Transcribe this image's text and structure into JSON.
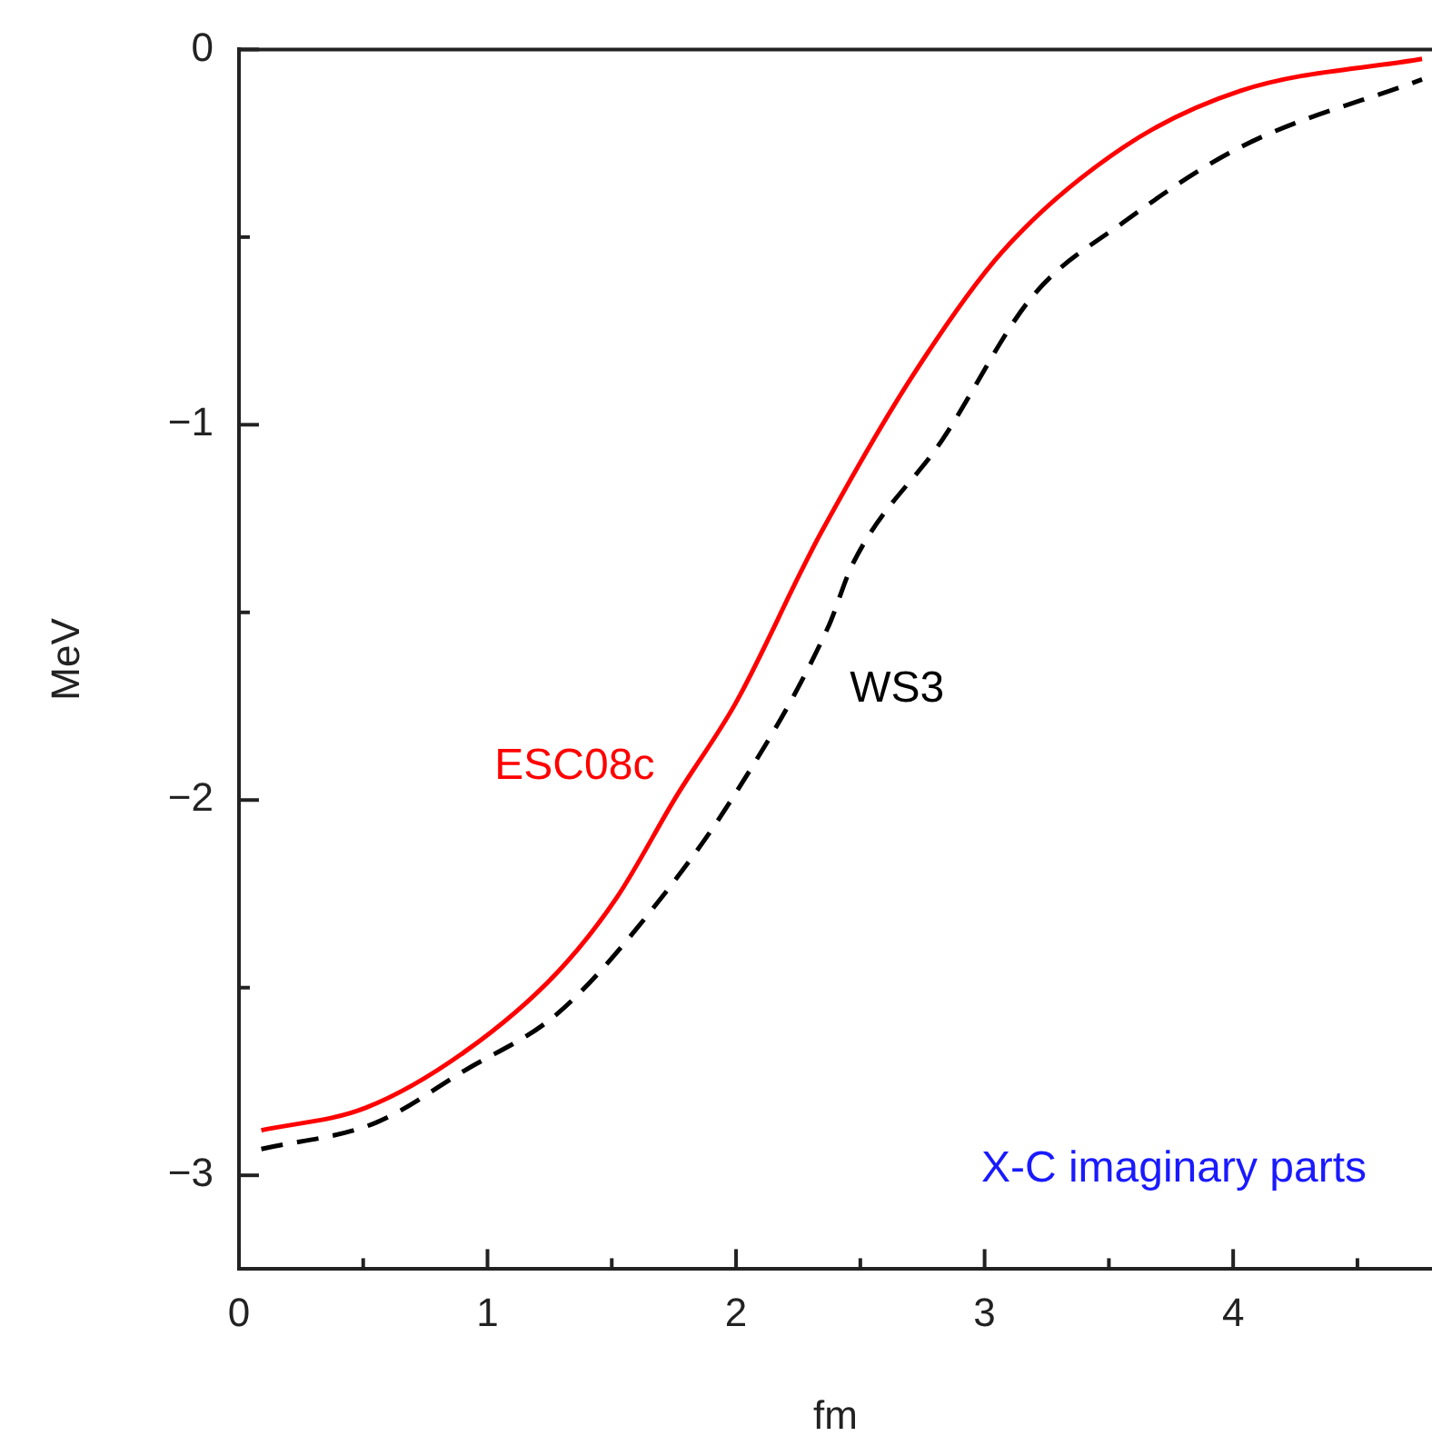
{
  "chart_data": {
    "type": "line",
    "xlabel": "fm",
    "ylabel": "MeV",
    "xlim": [
      0,
      4.8
    ],
    "ylim": [
      -3.25,
      0
    ],
    "xticks": [
      0,
      {
        "value": 0.5,
        "label": null
      },
      1,
      {
        "value": 1.5,
        "label": null
      },
      2,
      {
        "value": 2.5,
        "label": null
      },
      3,
      {
        "value": 3.5,
        "label": null
      },
      4,
      {
        "value": 4.5,
        "label": null
      }
    ],
    "yticks": [
      0,
      {
        "value": -0.5,
        "label": null
      },
      -1,
      {
        "value": -1.5,
        "label": null
      },
      -2,
      {
        "value": -2.5,
        "label": null
      },
      -3
    ],
    "grid": false,
    "legend": false,
    "marker": "none",
    "annotations": [
      "X-C imaginary parts"
    ],
    "series": [
      {
        "name": "ESC08c",
        "color": "#ff0000",
        "line_style": "solid",
        "x": [
          0.09,
          0.51,
          0.91,
          1.28,
          1.52,
          1.76,
          2.0,
          2.27,
          2.34,
          2.71,
          3.07,
          3.56,
          4.03,
          4.76
        ],
        "values": [
          -2.88,
          -2.82,
          -2.67,
          -2.46,
          -2.26,
          -1.99,
          -1.74,
          -1.38,
          -1.29,
          -0.87,
          -0.54,
          -0.26,
          -0.11,
          -0.025
        ]
      },
      {
        "name": "WS3",
        "color": "#000000",
        "line_style": "dashed",
        "x": [
          0.09,
          0.55,
          0.91,
          1.28,
          1.64,
          2.0,
          2.37,
          2.47,
          2.83,
          3.19,
          3.56,
          4.03,
          4.76
        ],
        "values": [
          -2.93,
          -2.86,
          -2.72,
          -2.57,
          -2.31,
          -1.98,
          -1.54,
          -1.37,
          -1.04,
          -0.66,
          -0.46,
          -0.26,
          -0.08
        ]
      }
    ]
  }
}
